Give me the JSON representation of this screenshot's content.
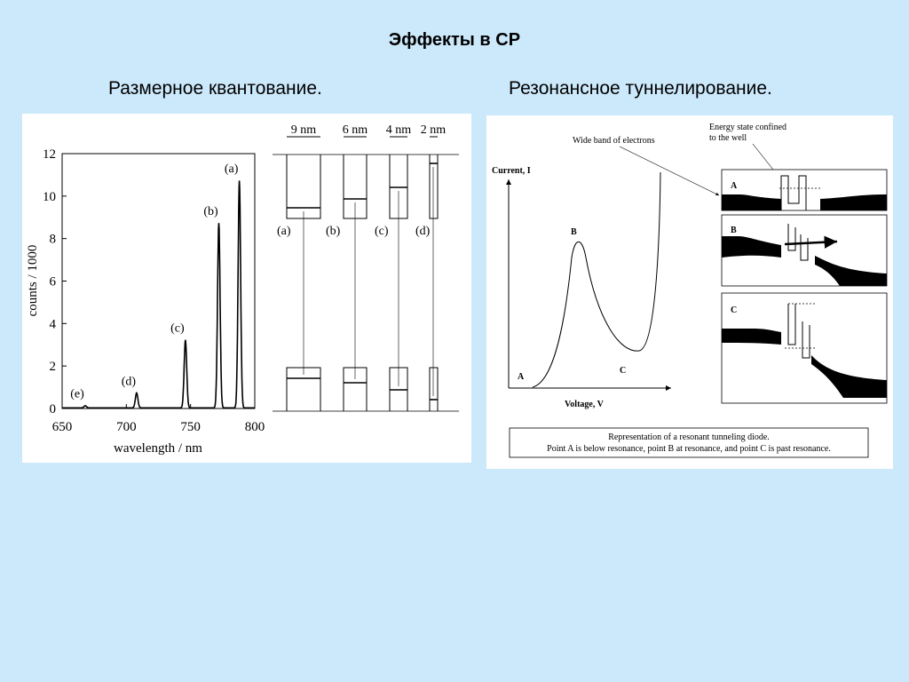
{
  "slide": {
    "title": "Эффекты в СР",
    "left_subtitle": "Размерное квантование.",
    "right_subtitle": "Резонансное туннелирование."
  },
  "left_figure": {
    "chart_data": {
      "type": "line",
      "xlabel": "wavelength / nm",
      "ylabel": "counts / 1000",
      "xlim": [
        650,
        800
      ],
      "ylim": [
        0,
        12
      ],
      "x_ticks": [
        "650",
        "700",
        "750",
        "800"
      ],
      "y_ticks": [
        "0",
        "2",
        "4",
        "6",
        "8",
        "10",
        "12"
      ],
      "peaks": [
        {
          "label": "(e)",
          "x": 668,
          "y": 0.1
        },
        {
          "label": "(d)",
          "x": 708,
          "y": 0.7
        },
        {
          "label": "(c)",
          "x": 746,
          "y": 3.2
        },
        {
          "label": "(b)",
          "x": 772,
          "y": 8.7
        },
        {
          "label": "(a)",
          "x": 788,
          "y": 10.7
        }
      ]
    },
    "wells": [
      {
        "width_label": "9 nm",
        "tag": "(a)"
      },
      {
        "width_label": "6 nm",
        "tag": "(b)"
      },
      {
        "width_label": "4 nm",
        "tag": "(c)"
      },
      {
        "width_label": "2 nm",
        "tag": "(d)"
      }
    ]
  },
  "right_figure": {
    "chart_data": {
      "type": "line",
      "xlabel": "Voltage, V",
      "ylabel": "Current, I",
      "points": [
        {
          "label": "A"
        },
        {
          "label": "B"
        },
        {
          "label": "C"
        }
      ]
    },
    "wide_band_label": "Wide band of electrons",
    "energy_state_label_1": "Energy state confined",
    "energy_state_label_2": "to the well",
    "states": [
      "A",
      "B",
      "C"
    ],
    "caption_line_1": "Representation of a resonant tunneling diode.",
    "caption_line_2": "Point A is below resonance, point B at resonance, and point C is past resonance."
  }
}
